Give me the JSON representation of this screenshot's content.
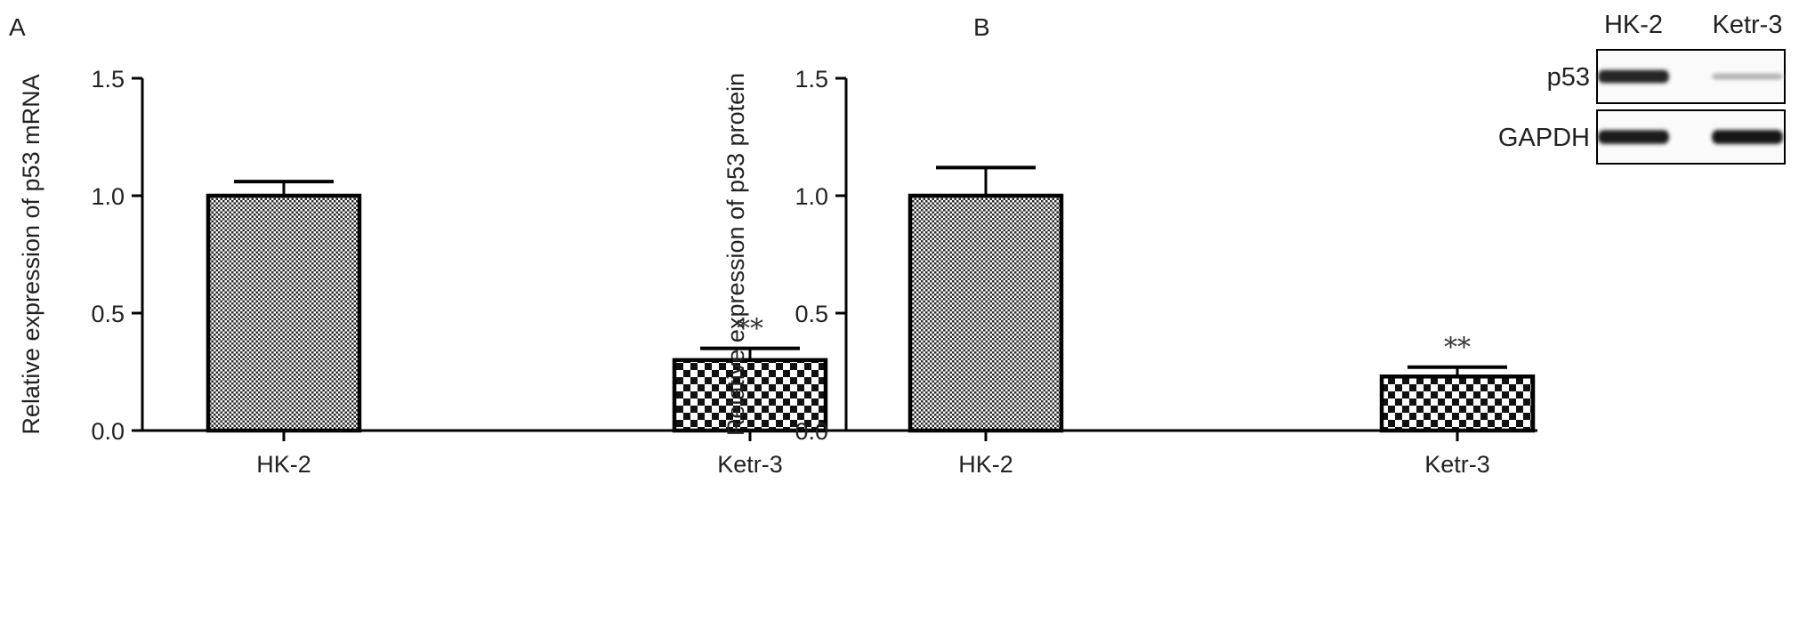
{
  "chart_data": [
    {
      "type": "bar",
      "panel": "A",
      "categories": [
        "HK-2",
        "Ketr-3"
      ],
      "values": [
        1.0,
        0.3
      ],
      "errors": [
        0.06,
        0.05
      ],
      "significance": [
        "",
        "**"
      ],
      "title": "",
      "xlabel": "",
      "ylabel": "Relative expression of p53 mRNA",
      "ylim": [
        0,
        1.5
      ],
      "yticks": [
        "0.0",
        "0.5",
        "1.0",
        "1.5"
      ],
      "grid": false
    },
    {
      "type": "bar",
      "panel": "B",
      "categories": [
        "HK-2",
        "Ketr-3"
      ],
      "values": [
        1.0,
        0.23
      ],
      "errors": [
        0.12,
        0.04
      ],
      "significance": [
        "",
        "**"
      ],
      "title": "",
      "xlabel": "",
      "ylabel": "Relative expression of p53 protein",
      "ylim": [
        0,
        1.5
      ],
      "yticks": [
        "0.0",
        "0.5",
        "1.0",
        "1.5"
      ],
      "grid": false,
      "blot": {
        "columns": [
          "HK-2",
          "Ketr-3"
        ],
        "rows": [
          {
            "label": "p53",
            "intensities": [
              0.9,
              0.25
            ]
          },
          {
            "label": "GAPDH",
            "intensities": [
              0.95,
              0.97
            ]
          }
        ]
      }
    }
  ]
}
